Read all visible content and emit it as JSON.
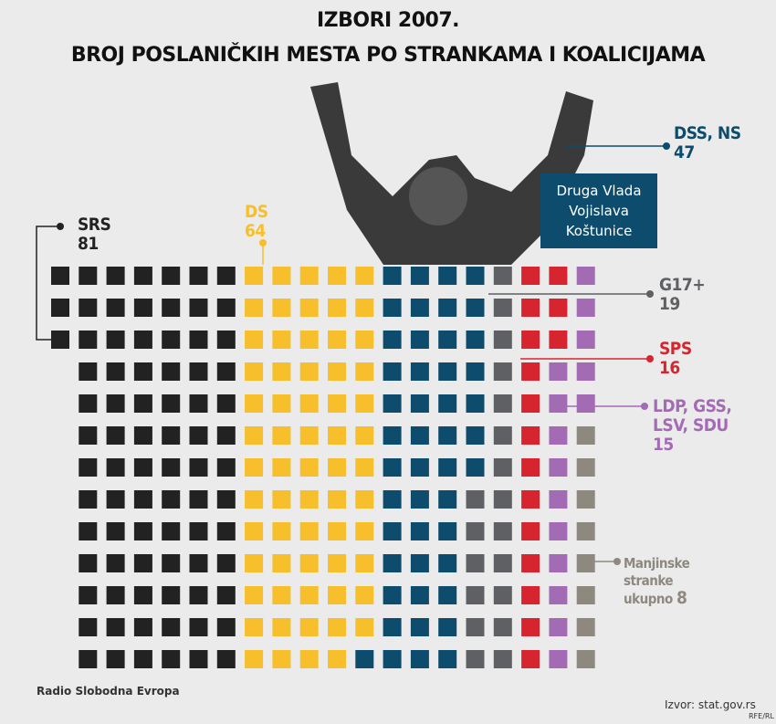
{
  "chart_data": {
    "type": "waffle",
    "title": "IZBORI 2007.",
    "subtitle": "BROJ POSLANIČKIH MESTA PO STRANKAMA I KOALICIJAMA",
    "series": [
      {
        "name": "SRS",
        "color": "#222222",
        "value": 81
      },
      {
        "name": "DS",
        "color": "#f6bf2b",
        "value": 64
      },
      {
        "name": "DSS, NS",
        "color": "#0d4c6c",
        "value": 47
      },
      {
        "name": "G17+",
        "color": "#5e6063",
        "value": 19
      },
      {
        "name": "SPS",
        "color": "#d6252e",
        "value": 16
      },
      {
        "name": "LDP, GSS, LSV, SDU",
        "color": "#a46bb5",
        "value": 15
      },
      {
        "name": "Manjinske stranke ukupno",
        "color": "#8e897f",
        "value": 8
      }
    ],
    "annotation": "Druga Vlada Vojislava Koštunice",
    "source": "Izvor: stat.gov.rs",
    "logo": "Radio Slobodna Evropa",
    "credit": "RFE/RL"
  }
}
